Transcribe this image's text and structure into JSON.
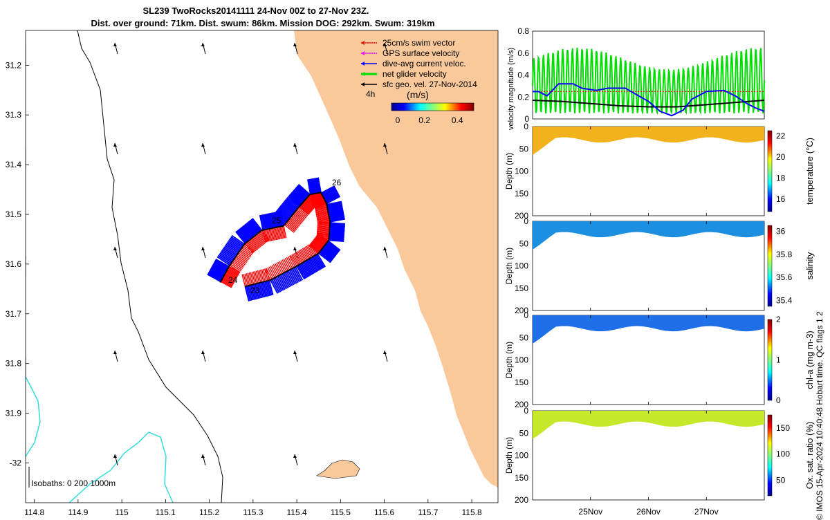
{
  "title_line1": "SL239 TwoRocks20141111 24-Nov 00Z to 27-Nov 23Z.",
  "title_line2": "Dist. over ground: 71km. Dist. swum: 86km. Mission DOG: 292km. Swum: 319km",
  "credit": "© IMOS 15-Apr-2024 10:40:48 Hobart time. QC flags 1  2",
  "colors": {
    "land": "#f9c89b",
    "isobath": "#33dddd",
    "swim": "#ff0000",
    "gps": "#ff00ff",
    "dive": "#0000ff",
    "net": "#00dd00",
    "sfc": "#000000"
  },
  "map": {
    "legend": [
      {
        "label": "25cm/s swim vector",
        "color": "#ff0000"
      },
      {
        "label": "GPS surface velocity",
        "color": "#ff00ff"
      },
      {
        "label": "dive-avg current veloc.",
        "color": "#0000ff"
      },
      {
        "label": "net glider velocity",
        "color": "#00dd00"
      },
      {
        "label": "sfc geo. vel. 27-Nov-2014",
        "color": "#000000"
      }
    ],
    "time_label": "4h",
    "colorbar_title": "(m/s)",
    "colorbar_ticks": [
      "0",
      "0.2",
      "0.4"
    ],
    "isobaths_label": "Isobaths: 0   200  1000m",
    "day_labels": [
      "26",
      "25",
      "24",
      "23"
    ],
    "chart_data": {
      "type": "map",
      "xlim": [
        114.78,
        115.86
      ],
      "ylim": [
        -32.08,
        -31.13
      ],
      "x_ticks": [
        114.8,
        114.9,
        115,
        115.1,
        115.2,
        115.3,
        115.4,
        115.5,
        115.6,
        115.7,
        115.8
      ],
      "x_tick_labels": [
        "114.8",
        "114.9",
        "115",
        "115.1",
        "115.2",
        "115.3",
        "115.4",
        "115.5",
        "115.6",
        "115.7",
        "115.8"
      ],
      "y_ticks": [
        -31.2,
        -31.3,
        -31.4,
        -31.5,
        -31.6,
        -31.7,
        -31.8,
        -31.9,
        -32
      ],
      "y_tick_labels": [
        "31.2",
        "31.3",
        "31.4",
        "31.5",
        "31.6",
        "31.7",
        "31.8",
        "31.9",
        "-32"
      ],
      "track": [
        [
          115.282,
          -31.645
        ],
        [
          115.34,
          -31.632
        ],
        [
          115.4,
          -31.604
        ],
        [
          115.45,
          -31.578
        ],
        [
          115.473,
          -31.552
        ],
        [
          115.476,
          -31.515
        ],
        [
          115.468,
          -31.478
        ],
        [
          115.455,
          -31.456
        ],
        [
          115.43,
          -31.46
        ],
        [
          115.405,
          -31.485
        ],
        [
          115.37,
          -31.523
        ],
        [
          115.32,
          -31.532
        ],
        [
          115.28,
          -31.56
        ],
        [
          115.245,
          -31.605
        ],
        [
          115.225,
          -31.637
        ]
      ]
    }
  },
  "velocity_panel": {
    "ylabel": "velocity magnitude (m/s)",
    "chart_data": {
      "type": "line",
      "x_range_days": [
        0,
        4
      ],
      "ylim": [
        0,
        0.8
      ],
      "y_ticks": [
        0,
        0.2,
        0.4,
        0.6,
        0.8
      ],
      "y_tick_labels": [
        "0",
        "0.2",
        "0.4",
        "0.6",
        "0.8"
      ],
      "series": [
        {
          "name": "dive-avg current",
          "x": [
            0,
            0.1,
            0.25,
            0.45,
            0.7,
            0.85,
            1.1,
            1.3,
            1.6,
            1.8,
            2.0,
            2.2,
            2.4,
            2.6,
            2.75,
            3.0,
            3.3,
            3.5,
            3.7,
            3.85,
            4.0
          ],
          "values": [
            0.25,
            0.25,
            0.21,
            0.32,
            0.32,
            0.28,
            0.26,
            0.28,
            0.28,
            0.22,
            0.16,
            0.07,
            0.03,
            0.08,
            0.18,
            0.25,
            0.26,
            0.21,
            0.14,
            0.1,
            0.07
          ]
        },
        {
          "name": "sfc geo. vel.",
          "x": [
            0,
            0.5,
            1.0,
            1.5,
            2.0,
            2.5,
            3.0,
            3.5,
            4.0
          ],
          "values": [
            0.17,
            0.16,
            0.14,
            0.12,
            0.11,
            0.11,
            0.13,
            0.15,
            0.17
          ]
        },
        {
          "name": "swim vector",
          "x": [
            0,
            4
          ],
          "values": [
            0.25,
            0.25
          ]
        },
        {
          "name": "net glider velocity",
          "x": [
            0,
            4
          ],
          "values": [
            0.04,
            0.65
          ]
        }
      ]
    }
  },
  "panels": [
    {
      "label": "temperature (°C)",
      "ticks": [
        "16",
        "18",
        "20",
        "22"
      ],
      "tickvals": [
        16,
        18,
        20,
        22
      ],
      "clim": [
        14.8,
        22.5
      ],
      "fill": "#f2b21e",
      "ylim": [
        0,
        200
      ],
      "chart_data": {
        "type": "heatmap",
        "variable": "temperature",
        "typical_value": 20.5
      }
    },
    {
      "label": "salinity",
      "ticks": [
        "35.4",
        "35.6",
        "35.8",
        "36"
      ],
      "tickvals": [
        35.4,
        35.6,
        35.8,
        36
      ],
      "clim": [
        35.35,
        36.05
      ],
      "fill": "#1c8fe0",
      "ylim": [
        0,
        200
      ],
      "chart_data": {
        "type": "heatmap",
        "variable": "salinity",
        "typical_value": 35.55
      }
    },
    {
      "label": "chl-a (mg m-3)",
      "ticks": [
        "0",
        "1",
        "2"
      ],
      "tickvals": [
        0,
        1,
        2
      ],
      "clim": [
        0,
        2
      ],
      "fill": "#1f6fe8",
      "ylim": [
        0,
        200
      ],
      "chart_data": {
        "type": "heatmap",
        "variable": "chl-a",
        "typical_value": 0.3
      }
    },
    {
      "label": "Ox. sat. ratio (%)",
      "ticks": [
        "50",
        "100",
        "150"
      ],
      "tickvals": [
        50,
        100,
        150
      ],
      "clim": [
        20,
        175
      ],
      "fill": "#c6e82a",
      "ylim": [
        0,
        200
      ],
      "chart_data": {
        "type": "heatmap",
        "variable": "oxygen saturation",
        "typical_value": 110
      }
    }
  ],
  "depth_label": "Depth (m)",
  "depth_ticks": [
    "0",
    "50",
    "100",
    "150",
    "200"
  ],
  "depth_tickvals": [
    0,
    50,
    100,
    150,
    200
  ],
  "time_ticks": [
    "25Nov",
    "26Nov",
    "27Nov"
  ]
}
